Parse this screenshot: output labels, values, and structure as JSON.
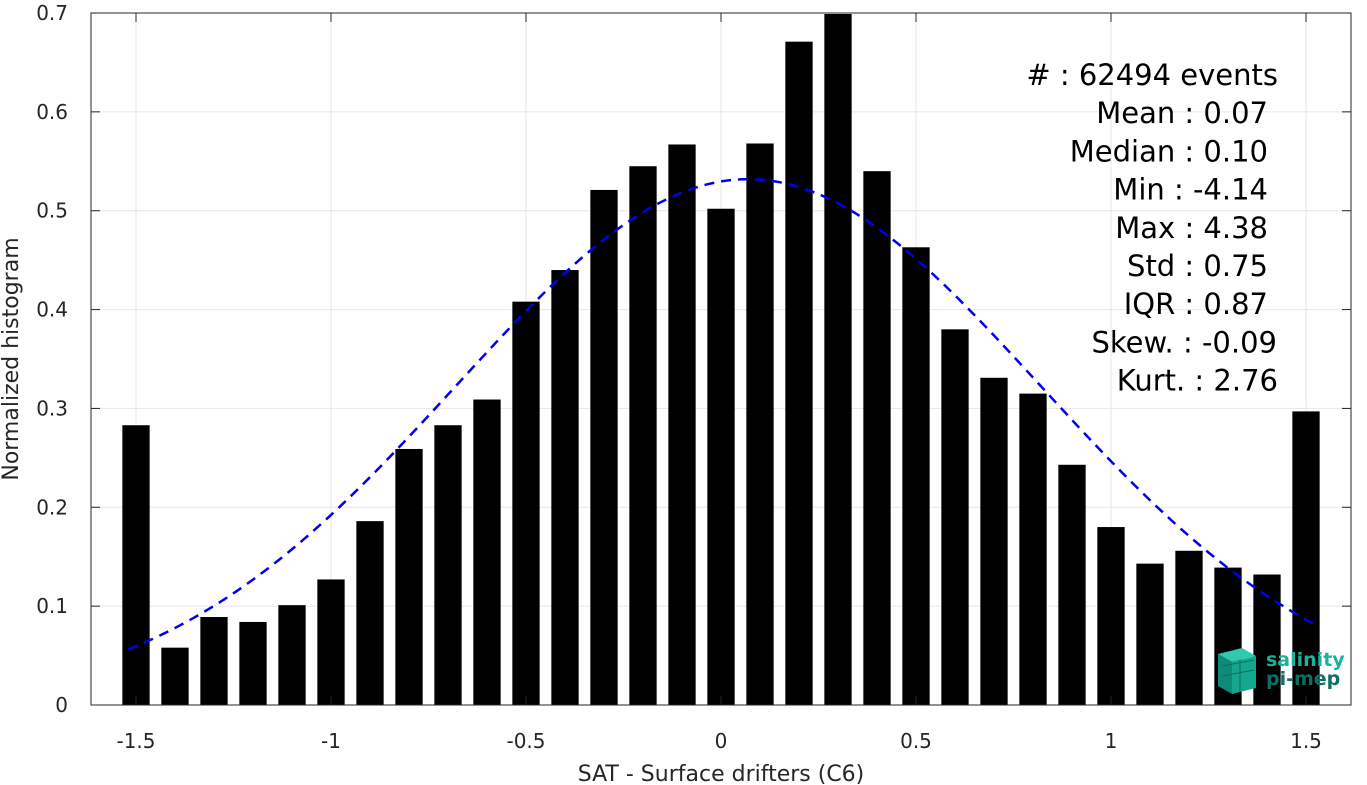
{
  "chart_data": {
    "type": "bar",
    "xlabel": "SAT - Surface drifters (C6)",
    "ylabel": "Normalized histogram",
    "xlim": [
      -1.6,
      1.6
    ],
    "ylim": [
      0,
      0.7
    ],
    "grid": true,
    "xticks": [
      -1.5,
      -1,
      -0.5,
      0,
      0.5,
      1,
      1.5
    ],
    "xtick_labels": [
      "-1.5",
      "-1",
      "-0.5",
      "0",
      "0.5",
      "1",
      "1.5"
    ],
    "yticks": [
      0,
      0.1,
      0.2,
      0.3,
      0.4,
      0.5,
      0.6,
      0.7
    ],
    "ytick_labels": [
      "0",
      "0.1",
      "0.2",
      "0.3",
      "0.4",
      "0.5",
      "0.6",
      "0.7"
    ],
    "bar_width": 0.07,
    "bins": [
      {
        "x": -1.5,
        "y": 0.283
      },
      {
        "x": -1.4,
        "y": 0.058
      },
      {
        "x": -1.3,
        "y": 0.089
      },
      {
        "x": -1.2,
        "y": 0.084
      },
      {
        "x": -1.1,
        "y": 0.101
      },
      {
        "x": -1.0,
        "y": 0.127
      },
      {
        "x": -0.9,
        "y": 0.186
      },
      {
        "x": -0.8,
        "y": 0.259
      },
      {
        "x": -0.7,
        "y": 0.283
      },
      {
        "x": -0.6,
        "y": 0.309
      },
      {
        "x": -0.5,
        "y": 0.408
      },
      {
        "x": -0.4,
        "y": 0.44
      },
      {
        "x": -0.3,
        "y": 0.521
      },
      {
        "x": -0.2,
        "y": 0.545
      },
      {
        "x": -0.1,
        "y": 0.567
      },
      {
        "x": 0.0,
        "y": 0.502
      },
      {
        "x": 0.1,
        "y": 0.568
      },
      {
        "x": 0.2,
        "y": 0.671
      },
      {
        "x": 0.3,
        "y": 0.699
      },
      {
        "x": 0.4,
        "y": 0.54
      },
      {
        "x": 0.5,
        "y": 0.463
      },
      {
        "x": 0.6,
        "y": 0.38
      },
      {
        "x": 0.7,
        "y": 0.331
      },
      {
        "x": 0.8,
        "y": 0.315
      },
      {
        "x": 0.9,
        "y": 0.243
      },
      {
        "x": 1.0,
        "y": 0.18
      },
      {
        "x": 1.1,
        "y": 0.143
      },
      {
        "x": 1.2,
        "y": 0.156
      },
      {
        "x": 1.3,
        "y": 0.139
      },
      {
        "x": 1.4,
        "y": 0.132
      },
      {
        "x": 1.5,
        "y": 0.297
      }
    ],
    "fit_curve": {
      "type": "gaussian",
      "mean": 0.07,
      "std": 0.75,
      "x_range": [
        -1.52,
        1.52
      ],
      "color": "#0000ee",
      "style": "dashed"
    },
    "bar_color": "#000000",
    "stats": [
      "#  : 62494 events",
      "Mean : 0.07",
      "Median : 0.10",
      "Min : -4.14",
      "Max : 4.38",
      "Std : 0.75",
      "IQR : 0.87",
      "Skew. : -0.09",
      "Kurt. : 2.76"
    ],
    "stats_placement": "top-right",
    "logo": {
      "text": [
        "salinity",
        "pi-mep"
      ],
      "colors": [
        "#19b39b",
        "#0b6f62"
      ],
      "placement": "bottom-right"
    }
  }
}
